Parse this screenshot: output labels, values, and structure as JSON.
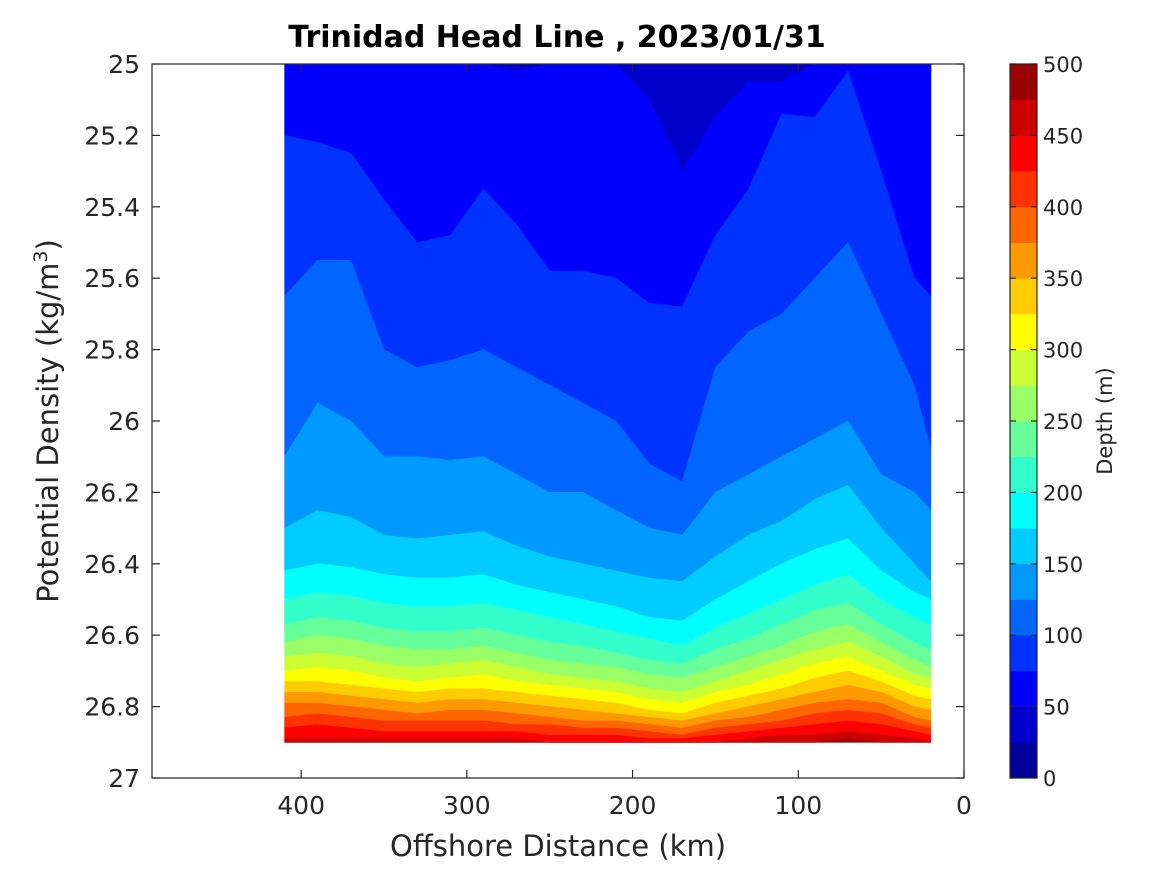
{
  "chart_data": {
    "type": "contour",
    "title": "Trinidad Head Line , 2023/01/31",
    "xlabel": "Offshore Distance (km)",
    "ylabel": "Potential Density (kg/m",
    "ylabel_sup": "3",
    "ylabel_close": ")",
    "xlim": [
      490,
      0
    ],
    "ylim": [
      25,
      27
    ],
    "x_reversed": true,
    "y_reversed": true,
    "x_ticks": [
      400,
      300,
      200,
      100,
      0
    ],
    "x_tick_labels": [
      "400",
      "300",
      "200",
      "100",
      "0"
    ],
    "y_ticks": [
      25,
      25.2,
      25.4,
      25.6,
      25.8,
      26,
      26.2,
      26.4,
      26.6,
      26.8,
      27
    ],
    "y_tick_labels": [
      "25",
      "25.2",
      "25.4",
      "25.6",
      "25.8",
      "26",
      "26.2",
      "26.4",
      "26.6",
      "26.8",
      "27"
    ],
    "colorbar": {
      "label": "Depth (m)",
      "range": [
        0,
        500
      ],
      "ticks": [
        0,
        50,
        100,
        150,
        200,
        250,
        300,
        350,
        400,
        450,
        500
      ],
      "tick_labels": [
        "0",
        "50",
        "100",
        "150",
        "200",
        "250",
        "300",
        "350",
        "400",
        "450",
        "500"
      ],
      "colormap": "jet",
      "level_step": 25
    },
    "field": {
      "value": "depth_m",
      "stations_km": [
        410,
        390,
        370,
        350,
        330,
        310,
        290,
        270,
        250,
        230,
        210,
        190,
        170,
        150,
        130,
        110,
        90,
        70,
        50,
        30,
        20
      ],
      "levels_m": [
        0,
        25,
        50,
        75,
        100,
        125,
        150,
        175,
        200,
        225,
        250,
        275,
        300,
        325,
        350,
        375,
        400,
        425,
        450,
        475
      ],
      "isopycnals": [
        [
          25.0,
          25.0,
          25.0,
          25.0,
          25.0,
          25.0,
          25.0,
          25.0,
          25.0,
          25.0,
          25.0,
          25.0,
          25.0,
          25.0,
          25.0,
          25.0,
          25.0,
          25.0,
          25.0,
          25.0,
          25.0
        ],
        [
          25.0,
          25.0,
          25.0,
          25.0,
          25.0,
          25.0,
          25.0,
          25.0,
          25.0,
          25.0,
          25.0,
          25.0,
          25.0,
          25.0,
          25.0,
          25.0,
          25.0,
          25.0,
          25.0,
          25.0,
          25.02
        ],
        [
          25.0,
          25.0,
          25.0,
          25.0,
          25.0,
          25.0,
          25.0,
          25.02,
          25.0,
          25.0,
          25.0,
          25.1,
          25.3,
          25.15,
          25.05,
          25.05,
          25.0,
          25.0,
          25.0,
          25.0,
          25.0
        ],
        [
          25.2,
          25.22,
          25.25,
          25.38,
          25.5,
          25.48,
          25.35,
          25.45,
          25.58,
          25.58,
          25.6,
          25.67,
          25.68,
          25.48,
          25.35,
          25.14,
          25.15,
          25.02,
          25.3,
          25.6,
          25.65
        ],
        [
          25.65,
          25.55,
          25.55,
          25.8,
          25.85,
          25.83,
          25.8,
          25.85,
          25.9,
          25.95,
          26.0,
          26.12,
          26.17,
          25.85,
          25.75,
          25.7,
          25.6,
          25.5,
          25.7,
          25.9,
          26.08
        ],
        [
          26.1,
          25.95,
          26.0,
          26.1,
          26.1,
          26.11,
          26.1,
          26.15,
          26.2,
          26.2,
          26.25,
          26.3,
          26.32,
          26.2,
          26.15,
          26.1,
          26.05,
          26.0,
          26.15,
          26.2,
          26.25
        ],
        [
          26.3,
          26.25,
          26.27,
          26.32,
          26.33,
          26.32,
          26.31,
          26.35,
          26.38,
          26.4,
          26.42,
          26.44,
          26.45,
          26.38,
          26.32,
          26.28,
          26.22,
          26.18,
          26.3,
          26.4,
          26.45
        ],
        [
          26.42,
          26.4,
          26.41,
          26.43,
          26.44,
          26.44,
          26.43,
          26.46,
          26.48,
          26.5,
          26.52,
          26.55,
          26.56,
          26.5,
          26.45,
          26.4,
          26.36,
          26.33,
          26.42,
          26.48,
          26.5
        ],
        [
          26.5,
          26.48,
          26.49,
          26.51,
          26.52,
          26.52,
          26.51,
          26.53,
          26.55,
          26.57,
          26.59,
          26.61,
          26.63,
          26.58,
          26.54,
          26.5,
          26.46,
          26.43,
          26.5,
          26.55,
          26.57
        ],
        [
          26.57,
          26.55,
          26.56,
          26.58,
          26.59,
          26.59,
          26.58,
          26.6,
          26.62,
          26.63,
          26.65,
          26.67,
          26.68,
          26.64,
          26.61,
          26.57,
          26.53,
          26.51,
          26.57,
          26.62,
          26.64
        ],
        [
          26.62,
          26.6,
          26.61,
          26.63,
          26.64,
          26.64,
          26.63,
          26.65,
          26.67,
          26.68,
          26.69,
          26.71,
          26.72,
          26.69,
          26.66,
          26.63,
          26.59,
          26.57,
          26.62,
          26.67,
          26.69
        ],
        [
          26.66,
          26.65,
          26.66,
          26.68,
          26.69,
          26.68,
          26.67,
          26.69,
          26.71,
          26.72,
          26.73,
          26.75,
          26.76,
          26.73,
          26.7,
          26.67,
          26.64,
          26.62,
          26.66,
          26.71,
          26.72
        ],
        [
          26.7,
          26.69,
          26.7,
          26.72,
          26.73,
          26.72,
          26.71,
          26.73,
          26.74,
          26.75,
          26.76,
          26.78,
          26.79,
          26.76,
          26.74,
          26.71,
          26.68,
          26.66,
          26.7,
          26.74,
          26.75
        ],
        [
          26.73,
          26.73,
          26.74,
          26.75,
          26.76,
          26.75,
          26.75,
          26.76,
          26.77,
          26.78,
          26.79,
          26.81,
          26.82,
          26.79,
          26.77,
          26.75,
          26.72,
          26.7,
          26.73,
          26.77,
          26.78
        ],
        [
          26.76,
          26.76,
          26.77,
          26.78,
          26.79,
          26.78,
          26.78,
          26.79,
          26.8,
          26.81,
          26.82,
          26.83,
          26.84,
          26.82,
          26.8,
          26.78,
          26.76,
          26.74,
          26.76,
          26.8,
          26.81
        ],
        [
          26.79,
          26.79,
          26.8,
          26.81,
          26.82,
          26.81,
          26.81,
          26.82,
          26.83,
          26.84,
          26.84,
          26.85,
          26.86,
          26.84,
          26.83,
          26.81,
          26.79,
          26.78,
          26.79,
          26.83,
          26.84
        ],
        [
          26.83,
          26.82,
          26.83,
          26.84,
          26.84,
          26.84,
          26.84,
          26.85,
          26.85,
          26.86,
          26.86,
          26.87,
          26.88,
          26.86,
          26.85,
          26.84,
          26.82,
          26.81,
          26.82,
          26.85,
          26.86
        ],
        [
          26.86,
          26.85,
          26.86,
          26.87,
          26.87,
          26.87,
          26.87,
          26.87,
          26.88,
          26.88,
          26.88,
          26.89,
          26.89,
          26.88,
          26.87,
          26.86,
          26.85,
          26.84,
          26.85,
          26.87,
          26.88
        ],
        [
          26.89,
          26.89,
          26.89,
          26.89,
          26.89,
          26.89,
          26.89,
          26.89,
          26.9,
          26.9,
          26.9,
          26.9,
          26.9,
          26.9,
          26.89,
          26.88,
          26.88,
          26.87,
          26.88,
          26.89,
          26.9
        ],
        [
          26.9,
          26.9,
          26.9,
          26.9,
          26.9,
          26.9,
          26.9,
          26.9,
          26.9,
          26.9,
          26.9,
          26.9,
          26.9,
          26.9,
          26.9,
          26.9,
          26.9,
          26.89,
          26.9,
          26.9,
          26.9
        ]
      ]
    }
  }
}
